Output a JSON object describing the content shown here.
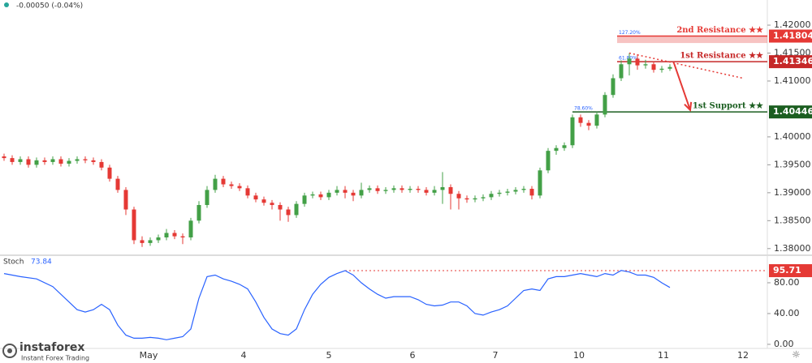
{
  "chart_data": [
    {
      "type": "candlestick",
      "change_label": "-0.00050 (-0.04%)",
      "x": [
        0,
        1,
        2,
        3,
        4,
        5,
        6,
        7,
        8,
        9,
        10,
        11,
        12,
        13,
        14,
        15,
        16,
        17,
        18,
        19,
        20,
        21,
        22,
        23,
        24,
        25,
        26,
        27,
        28,
        29,
        30,
        31,
        32,
        33,
        34,
        35,
        36,
        37,
        38,
        39,
        40,
        41,
        42,
        43,
        44,
        45,
        46,
        47,
        48,
        49,
        50,
        51,
        52,
        53,
        54,
        55,
        56,
        57,
        58,
        59,
        60,
        61,
        62,
        63,
        64,
        65,
        66,
        67,
        68,
        69,
        70,
        71,
        72,
        73,
        74,
        75,
        76,
        77,
        78,
        79,
        80,
        81,
        82
      ],
      "open": [
        1.3965,
        1.3962,
        1.3955,
        1.396,
        1.395,
        1.3958,
        1.3955,
        1.396,
        1.3952,
        1.3957,
        1.396,
        1.3958,
        1.3955,
        1.3945,
        1.3925,
        1.3905,
        1.387,
        1.3815,
        1.381,
        1.3815,
        1.382,
        1.3828,
        1.3822,
        1.382,
        1.385,
        1.3878,
        1.3905,
        1.3925,
        1.3915,
        1.3912,
        1.3908,
        1.3895,
        1.3888,
        1.3882,
        1.3878,
        1.387,
        1.386,
        1.388,
        1.3895,
        1.3897,
        1.3892,
        1.39,
        1.3905,
        1.39,
        1.3895,
        1.3905,
        1.3908,
        1.3903,
        1.3905,
        1.3908,
        1.3905,
        1.3907,
        1.3905,
        1.39,
        1.3905,
        1.391,
        1.3898,
        1.389,
        1.3888,
        1.389,
        1.3892,
        1.3898,
        1.39,
        1.3902,
        1.3905,
        1.3907,
        1.3895,
        1.394,
        1.3975,
        1.398,
        1.3985,
        1.4035,
        1.4025,
        1.402,
        1.404,
        1.4075,
        1.4105,
        1.413,
        1.414,
        1.4128,
        1.413,
        1.412,
        1.4122
      ],
      "high": [
        1.397,
        1.3967,
        1.3965,
        1.3965,
        1.3963,
        1.3963,
        1.3965,
        1.3965,
        1.3962,
        1.3965,
        1.3965,
        1.3963,
        1.396,
        1.395,
        1.393,
        1.391,
        1.3875,
        1.3822,
        1.382,
        1.3825,
        1.3835,
        1.3833,
        1.3827,
        1.3855,
        1.3885,
        1.3912,
        1.3932,
        1.393,
        1.392,
        1.3917,
        1.3913,
        1.39,
        1.3893,
        1.3887,
        1.3883,
        1.3875,
        1.3885,
        1.39,
        1.3902,
        1.3902,
        1.3905,
        1.3912,
        1.3912,
        1.3905,
        1.3918,
        1.3913,
        1.3913,
        1.391,
        1.3913,
        1.3913,
        1.3912,
        1.3912,
        1.391,
        1.3912,
        1.3937,
        1.3915,
        1.3903,
        1.3895,
        1.3895,
        1.3897,
        1.3903,
        1.3905,
        1.3907,
        1.391,
        1.3912,
        1.3912,
        1.3945,
        1.398,
        1.3985,
        1.399,
        1.404,
        1.404,
        1.403,
        1.4045,
        1.408,
        1.4112,
        1.4137,
        1.415,
        1.4148,
        1.4138,
        1.4135,
        1.4127,
        1.413
      ],
      "low": [
        1.3957,
        1.395,
        1.395,
        1.3945,
        1.3945,
        1.395,
        1.395,
        1.3947,
        1.3947,
        1.3952,
        1.3953,
        1.395,
        1.394,
        1.392,
        1.39,
        1.386,
        1.3808,
        1.3803,
        1.3805,
        1.381,
        1.3815,
        1.3817,
        1.3808,
        1.3815,
        1.3845,
        1.3873,
        1.39,
        1.391,
        1.3907,
        1.3903,
        1.389,
        1.3883,
        1.3877,
        1.387,
        1.385,
        1.3848,
        1.3855,
        1.3875,
        1.389,
        1.3887,
        1.3887,
        1.3895,
        1.389,
        1.3885,
        1.389,
        1.39,
        1.3898,
        1.3898,
        1.39,
        1.39,
        1.39,
        1.39,
        1.3895,
        1.3895,
        1.388,
        1.387,
        1.387,
        1.3882,
        1.3883,
        1.3885,
        1.3887,
        1.3893,
        1.3895,
        1.3897,
        1.39,
        1.3888,
        1.389,
        1.3935,
        1.3968,
        1.3975,
        1.398,
        1.4018,
        1.4012,
        1.4015,
        1.4035,
        1.407,
        1.41,
        1.411,
        1.412,
        1.4122,
        1.4115,
        1.4115,
        1.4118
      ],
      "close": [
        1.3962,
        1.3955,
        1.396,
        1.395,
        1.3958,
        1.3955,
        1.396,
        1.3952,
        1.3957,
        1.396,
        1.3958,
        1.3955,
        1.3945,
        1.3925,
        1.3905,
        1.387,
        1.3815,
        1.381,
        1.3815,
        1.382,
        1.3828,
        1.3822,
        1.382,
        1.385,
        1.3878,
        1.3905,
        1.3925,
        1.3915,
        1.3912,
        1.3908,
        1.3895,
        1.3888,
        1.3882,
        1.3878,
        1.387,
        1.386,
        1.388,
        1.3895,
        1.3897,
        1.3892,
        1.39,
        1.3905,
        1.39,
        1.3895,
        1.3905,
        1.3908,
        1.3903,
        1.3905,
        1.3908,
        1.3905,
        1.3907,
        1.3905,
        1.39,
        1.3905,
        1.391,
        1.3898,
        1.389,
        1.3888,
        1.389,
        1.3892,
        1.3898,
        1.39,
        1.3902,
        1.3905,
        1.3907,
        1.3895,
        1.394,
        1.3975,
        1.398,
        1.3985,
        1.4035,
        1.4025,
        1.402,
        1.404,
        1.4075,
        1.4105,
        1.413,
        1.414,
        1.4128,
        1.413,
        1.412,
        1.4122,
        1.4125
      ],
      "up_color": "#43a047",
      "down_color": "#e53935",
      "xlim": [
        -0.5,
        94
      ],
      "xticks": [
        {
          "value": 17.8,
          "label": "May"
        },
        {
          "value": 29.5,
          "label": "4"
        },
        {
          "value": 40,
          "label": "5"
        },
        {
          "value": 50.3,
          "label": "6"
        },
        {
          "value": 60.5,
          "label": "7"
        },
        {
          "value": 70.8,
          "label": "10"
        },
        {
          "value": 81.2,
          "label": "11"
        },
        {
          "value": 91,
          "label": "12"
        }
      ],
      "ylim": [
        1.3791,
        1.4245
      ],
      "yticks": [
        {
          "value": 1.38,
          "label": "1.38000"
        },
        {
          "value": 1.385,
          "label": "1.38500"
        },
        {
          "value": 1.39,
          "label": "1.39000"
        },
        {
          "value": 1.395,
          "label": "1.39500"
        },
        {
          "value": 1.4,
          "label": "1.40000"
        },
        {
          "value": 1.41,
          "label": "1.41000"
        },
        {
          "value": 1.415,
          "label": "1.41500"
        },
        {
          "value": 1.42,
          "label": "1.42000"
        }
      ],
      "levels": [
        {
          "name": "2nd Resistance ★★",
          "value": 1.41804,
          "zone_low": 1.4168,
          "color": "#e53935",
          "from": 75.5,
          "fib_label": "127.20%"
        },
        {
          "name": "1st Resistance ★★",
          "value": 1.41346,
          "color": "#c62828",
          "from": 75.5,
          "fib_label": "61.80%"
        },
        {
          "name": "1st Support ★★",
          "value": 1.40446,
          "color": "#1b5e20",
          "from": 70,
          "fib_label": "78.60%"
        }
      ],
      "trendline": {
        "x": [
          77,
          91
        ],
        "y": [
          1.415,
          1.4105
        ],
        "color": "#e53935"
      },
      "arrow": {
        "x": [
          82.5,
          84.5
        ],
        "y": [
          1.4132,
          1.4048
        ],
        "color": "#e53935"
      }
    },
    {
      "type": "line",
      "title": "Stoch",
      "color": "#2962ff",
      "x": [
        0,
        2,
        4,
        6,
        8,
        9,
        10,
        11,
        12,
        13,
        14,
        15,
        16,
        17,
        18,
        19,
        20,
        21,
        22,
        23,
        24,
        25,
        26,
        27,
        28,
        29,
        30,
        31,
        32,
        33,
        34,
        35,
        36,
        37,
        38,
        39,
        40,
        41,
        42,
        43,
        44,
        45,
        46,
        47,
        48,
        49,
        50,
        51,
        52,
        53,
        54,
        55,
        56,
        57,
        58,
        59,
        60,
        61,
        62,
        63,
        64,
        65,
        66,
        67,
        68,
        69,
        70,
        71,
        72,
        73,
        74,
        75,
        76,
        77,
        78,
        79,
        80,
        81,
        82
      ],
      "values": [
        92,
        88,
        85,
        75,
        55,
        45,
        42,
        45,
        52,
        45,
        25,
        12,
        8,
        8,
        9,
        8,
        6,
        8,
        10,
        20,
        60,
        88,
        90,
        85,
        82,
        78,
        72,
        55,
        35,
        20,
        14,
        12,
        20,
        45,
        65,
        78,
        87,
        92,
        95.71,
        90,
        80,
        72,
        65,
        60,
        62,
        62,
        62,
        58,
        52,
        50,
        51,
        55,
        55,
        50,
        40,
        38,
        42,
        45,
        50,
        60,
        70,
        72,
        70,
        85,
        88,
        88,
        90,
        92,
        90,
        88,
        92,
        90,
        96,
        94,
        90,
        90,
        87,
        80,
        73.84
      ],
      "ylim": [
        -5.3,
        112.6
      ],
      "yticks": [
        {
          "value": 0,
          "label": "0.00"
        },
        {
          "value": 40,
          "label": "40.00"
        },
        {
          "value": 80,
          "label": "80.00"
        }
      ],
      "marker": {
        "value": 95.71,
        "from": 42,
        "color": "#e53935"
      }
    }
  ],
  "logo": {
    "name": "instaforex",
    "tagline": "Instant Forex Trading"
  }
}
